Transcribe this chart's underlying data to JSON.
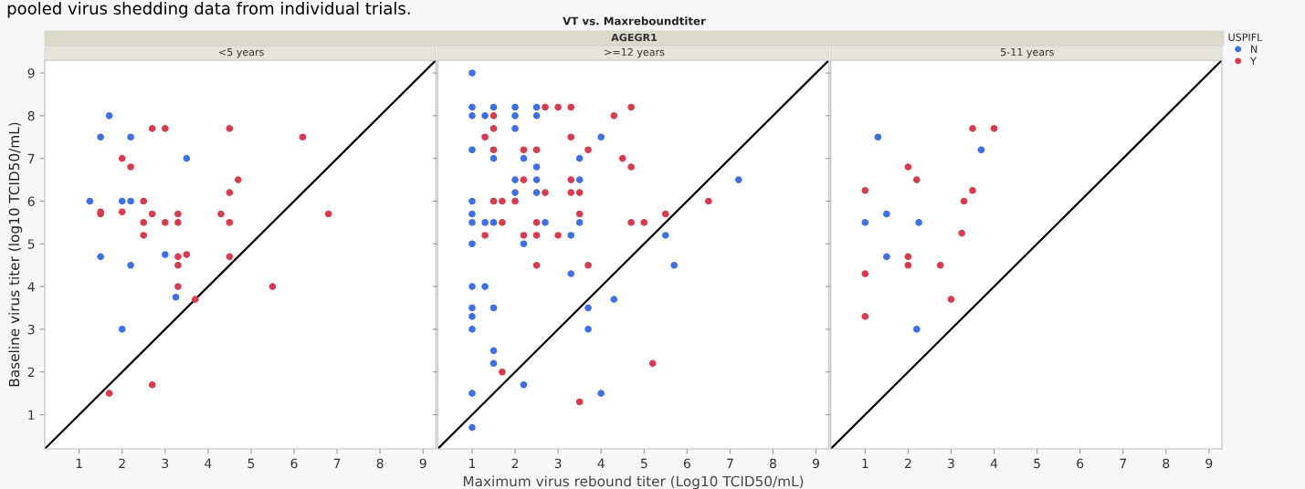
{
  "chart_data": [
    {
      "type": "scatter",
      "title": "<5 years",
      "ylabel": "Baseline virus titer (log10 TCID50/mL)",
      "annotations": [
        "pooled virus shedding data from individual trials.",
        "VT vs. Maxreboundtiter",
        "AGEGR1"
      ],
      "xlim": [
        0.2,
        9.3
      ],
      "ylim": [
        0.2,
        9.3
      ],
      "xticks": [
        1,
        2,
        3,
        4,
        5,
        6,
        7,
        8,
        9
      ],
      "yticks": [
        1,
        2,
        3,
        4,
        5,
        6,
        7,
        8,
        9
      ],
      "grid": false,
      "marker": "circle",
      "series": [
        {
          "color": "#3f6fe6",
          "x": [
            1.7,
            1.5,
            2.2,
            3.5,
            1.25,
            2.0,
            2.2,
            1.5,
            2.2,
            3.0,
            3.25,
            2.0
          ],
          "values": [
            8.0,
            7.5,
            7.5,
            7.0,
            6.0,
            6.0,
            6.0,
            4.7,
            4.5,
            4.75,
            3.75,
            3.0
          ]
        },
        {
          "color": "#d93a4e",
          "x": [
            2.7,
            3.0,
            4.5,
            6.2,
            2.0,
            2.2,
            4.7,
            4.5,
            2.5,
            1.5,
            1.5,
            2.0,
            2.7,
            3.3,
            4.3,
            6.8,
            2.5,
            3.0,
            3.3,
            4.5,
            2.5,
            3.3,
            3.5,
            4.5,
            3.3,
            3.3,
            5.5,
            3.7,
            2.7,
            1.7
          ],
          "values": [
            7.7,
            7.7,
            7.7,
            7.5,
            7.0,
            6.8,
            6.5,
            6.2,
            6.0,
            5.75,
            5.7,
            5.75,
            5.7,
            5.7,
            5.7,
            5.7,
            5.5,
            5.5,
            5.5,
            5.5,
            5.2,
            4.7,
            4.75,
            4.7,
            4.5,
            4.0,
            4.0,
            3.7,
            1.7,
            1.5
          ]
        },
        {
          "type": "line",
          "marker": "none",
          "color": "#000000",
          "x": [
            0.2,
            9.3
          ],
          "values": [
            0.2,
            9.3
          ]
        }
      ]
    },
    {
      "type": "scatter",
      "title": ">=12 years",
      "xlabel": "Maximum virus rebound titer (Log10 TCID50/mL)",
      "xlim": [
        0.2,
        9.3
      ],
      "ylim": [
        0.2,
        9.3
      ],
      "xticks": [
        1,
        2,
        3,
        4,
        5,
        6,
        7,
        8,
        9
      ],
      "yticks": [
        1,
        2,
        3,
        4,
        5,
        6,
        7,
        8,
        9
      ],
      "tick_labels": "x",
      "grid": false,
      "marker": "circle",
      "series": [
        {
          "color": "#3f6fe6",
          "x": [
            1,
            1,
            1.5,
            2.0,
            2.5,
            1,
            1.3,
            2,
            2.5,
            2,
            4.0,
            1,
            1.5,
            2.2,
            3.5,
            2.5,
            2,
            2.5,
            3.5,
            7.2,
            2,
            2.5,
            1,
            1,
            1,
            1.3,
            1.5,
            2.7,
            3.5,
            3.3,
            5.5,
            1,
            2.2,
            5.7,
            3.3,
            1,
            1.3,
            4.3,
            1,
            1.5,
            3.7,
            1,
            1,
            3.7,
            1.5,
            1.5,
            2.2,
            1,
            4.0,
            1
          ],
          "values": [
            9.0,
            8.2,
            8.2,
            8.2,
            8.2,
            8.0,
            8.0,
            8.0,
            8.0,
            7.7,
            7.5,
            7.2,
            7.0,
            7.0,
            7.0,
            6.8,
            6.5,
            6.5,
            6.5,
            6.5,
            6.2,
            6.2,
            6.0,
            5.7,
            5.5,
            5.5,
            5.5,
            5.5,
            5.5,
            5.2,
            5.2,
            5.0,
            5.0,
            4.5,
            4.3,
            4.0,
            4.0,
            3.7,
            3.5,
            3.5,
            3.5,
            3.3,
            3.0,
            3.0,
            2.5,
            2.2,
            1.7,
            1.5,
            1.5,
            0.7
          ]
        },
        {
          "color": "#d93a4e",
          "x": [
            2.7,
            3.0,
            3.3,
            4.7,
            1.5,
            4.3,
            1.5,
            1.3,
            3.3,
            1.5,
            2.2,
            2.5,
            3.7,
            4.5,
            4.7,
            2.2,
            3.3,
            2.7,
            3.3,
            3.5,
            1.5,
            1.7,
            2.0,
            6.5,
            3.5,
            5.5,
            1.7,
            2.5,
            4.7,
            5.0,
            1.3,
            2.2,
            2.5,
            3.0,
            2.5,
            3.7,
            5.2,
            1.7,
            3.5
          ],
          "values": [
            8.2,
            8.2,
            8.2,
            8.2,
            8.0,
            8.0,
            7.7,
            7.5,
            7.5,
            7.2,
            7.2,
            7.2,
            7.2,
            7.0,
            6.8,
            6.5,
            6.5,
            6.2,
            6.2,
            6.2,
            6.0,
            6.0,
            6.0,
            6.0,
            5.7,
            5.7,
            5.5,
            5.5,
            5.5,
            5.5,
            5.2,
            5.2,
            5.2,
            5.2,
            4.5,
            4.5,
            2.2,
            2.0,
            1.3
          ]
        },
        {
          "type": "line",
          "marker": "none",
          "color": "#000000",
          "x": [
            0.2,
            9.3
          ],
          "values": [
            0.2,
            9.3
          ]
        }
      ]
    },
    {
      "type": "scatter",
      "title": "5-11 years",
      "legend_title": "USPIFL",
      "legend": "right",
      "xlim": [
        0.2,
        9.3
      ],
      "ylim": [
        0.2,
        9.3
      ],
      "xticks": [
        1,
        2,
        3,
        4,
        5,
        6,
        7,
        8,
        9
      ],
      "yticks": [
        1,
        2,
        3,
        4,
        5,
        6,
        7,
        8,
        9
      ],
      "tick_labels": "x",
      "grid": false,
      "marker": "circle",
      "series": [
        {
          "name": "N",
          "color": "#3f6fe6",
          "x": [
            1.3,
            3.7,
            1.5,
            1.0,
            2.25,
            1.5,
            2.2
          ],
          "values": [
            7.5,
            7.2,
            5.7,
            5.5,
            5.5,
            4.7,
            3.0
          ]
        },
        {
          "name": "Y",
          "color": "#d93a4e",
          "x": [
            3.5,
            4.0,
            2.0,
            2.2,
            1.0,
            3.5,
            3.3,
            3.25,
            2.0,
            2.0,
            2.75,
            1.0,
            3.0,
            1.0
          ],
          "values": [
            7.7,
            7.7,
            6.8,
            6.5,
            6.25,
            6.25,
            6.0,
            5.25,
            4.7,
            4.5,
            4.5,
            4.3,
            3.7,
            3.3
          ]
        },
        {
          "type": "line",
          "marker": "none",
          "color": "#000000",
          "x": [
            0.2,
            9.3
          ],
          "values": [
            0.2,
            9.3
          ]
        }
      ]
    }
  ]
}
